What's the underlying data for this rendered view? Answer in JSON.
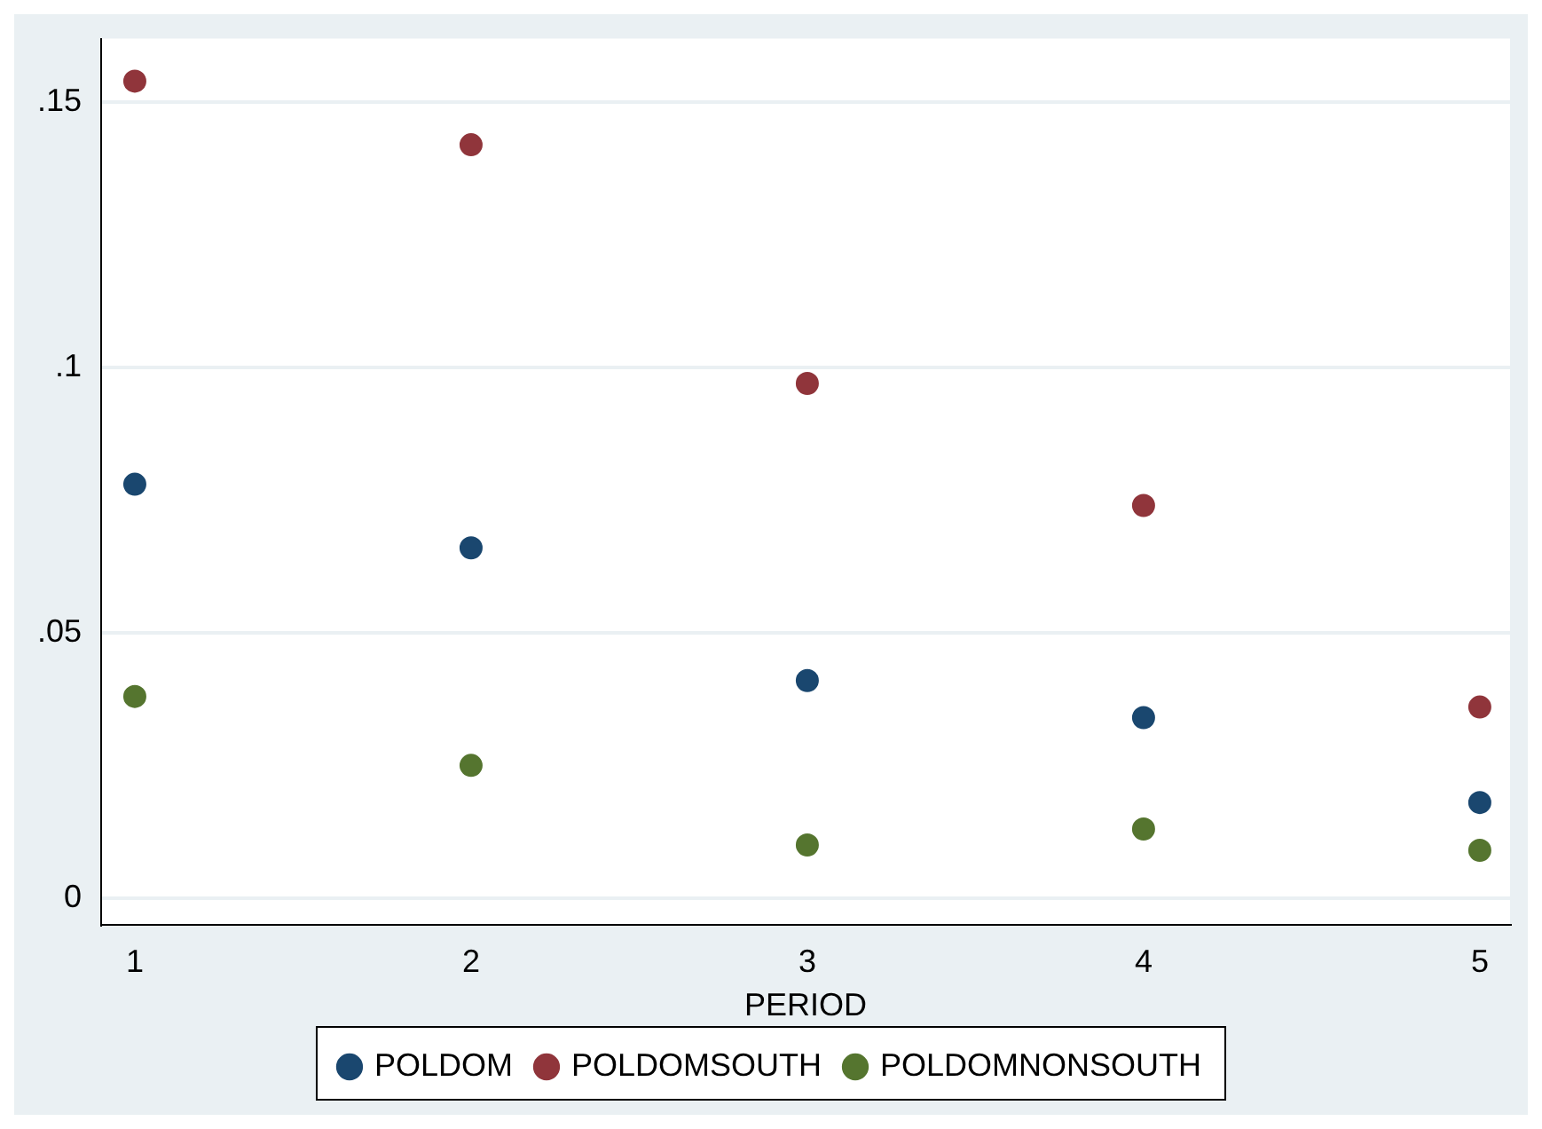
{
  "chart_data": {
    "type": "scatter",
    "xlabel": "PERIOD",
    "x": [
      1,
      2,
      3,
      4,
      5
    ],
    "series": [
      {
        "name": "POLDOM",
        "color": "#1a476f",
        "values": [
          0.078,
          0.066,
          0.041,
          0.034,
          0.018
        ]
      },
      {
        "name": "POLDOMSOUTH",
        "color": "#90353b",
        "values": [
          0.154,
          0.142,
          0.097,
          0.074,
          0.036
        ]
      },
      {
        "name": "POLDOMNONSOUTH",
        "color": "#55752f",
        "values": [
          0.038,
          0.025,
          0.01,
          0.013,
          0.009
        ]
      }
    ],
    "xlim": [
      0.9,
      5.09
    ],
    "xticks": [
      1,
      2,
      3,
      4,
      5
    ],
    "ylim": [
      -0.005,
      0.162
    ],
    "yticks": [
      {
        "value": 0,
        "label": "0"
      },
      {
        "value": 0.05,
        "label": ".05"
      },
      {
        "value": 0.1,
        "label": ".1"
      },
      {
        "value": 0.15,
        "label": ".15"
      }
    ],
    "grid": "y",
    "legend": "bottom",
    "marker": "circle"
  }
}
